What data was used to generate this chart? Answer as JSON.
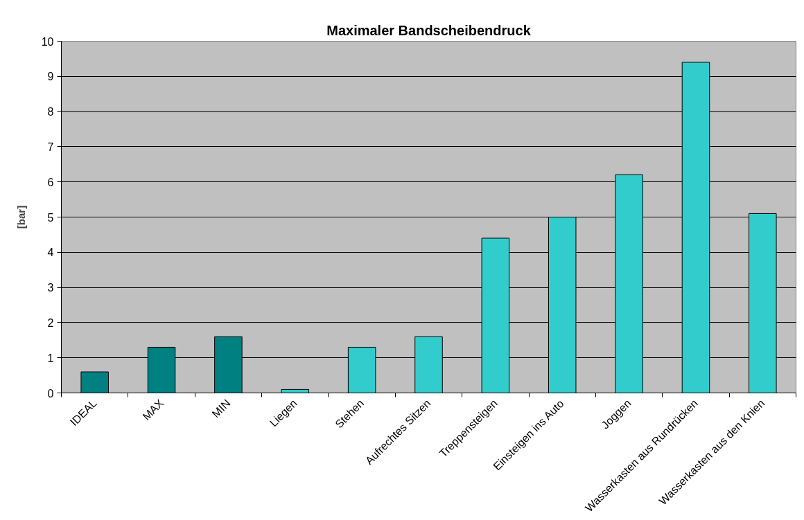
{
  "chart_data": {
    "type": "bar",
    "title": "Maximaler Bandscheibendruck",
    "ylabel": "[bar]",
    "categories": [
      "IDEAL",
      "MAX",
      "MIN",
      "Liegen",
      "Stehen",
      "Aufrechtes Sitzen",
      "Treppensteigen",
      "Einsteigen ins Auto",
      "Joggen",
      "Wasserkasten aus Rundrücken",
      "Wasserkasten aus den Knien"
    ],
    "values": [
      0.6,
      1.3,
      1.6,
      0.1,
      1.3,
      1.6,
      4.4,
      5.0,
      6.2,
      9.4,
      5.1
    ],
    "colors": [
      "#008080",
      "#008080",
      "#008080",
      "#33cccc",
      "#33cccc",
      "#33cccc",
      "#33cccc",
      "#33cccc",
      "#33cccc",
      "#33cccc",
      "#33cccc"
    ],
    "ylim": [
      0,
      10
    ],
    "yticks": [
      0,
      1,
      2,
      3,
      4,
      5,
      6,
      7,
      8,
      9,
      10
    ],
    "grid": "y"
  }
}
